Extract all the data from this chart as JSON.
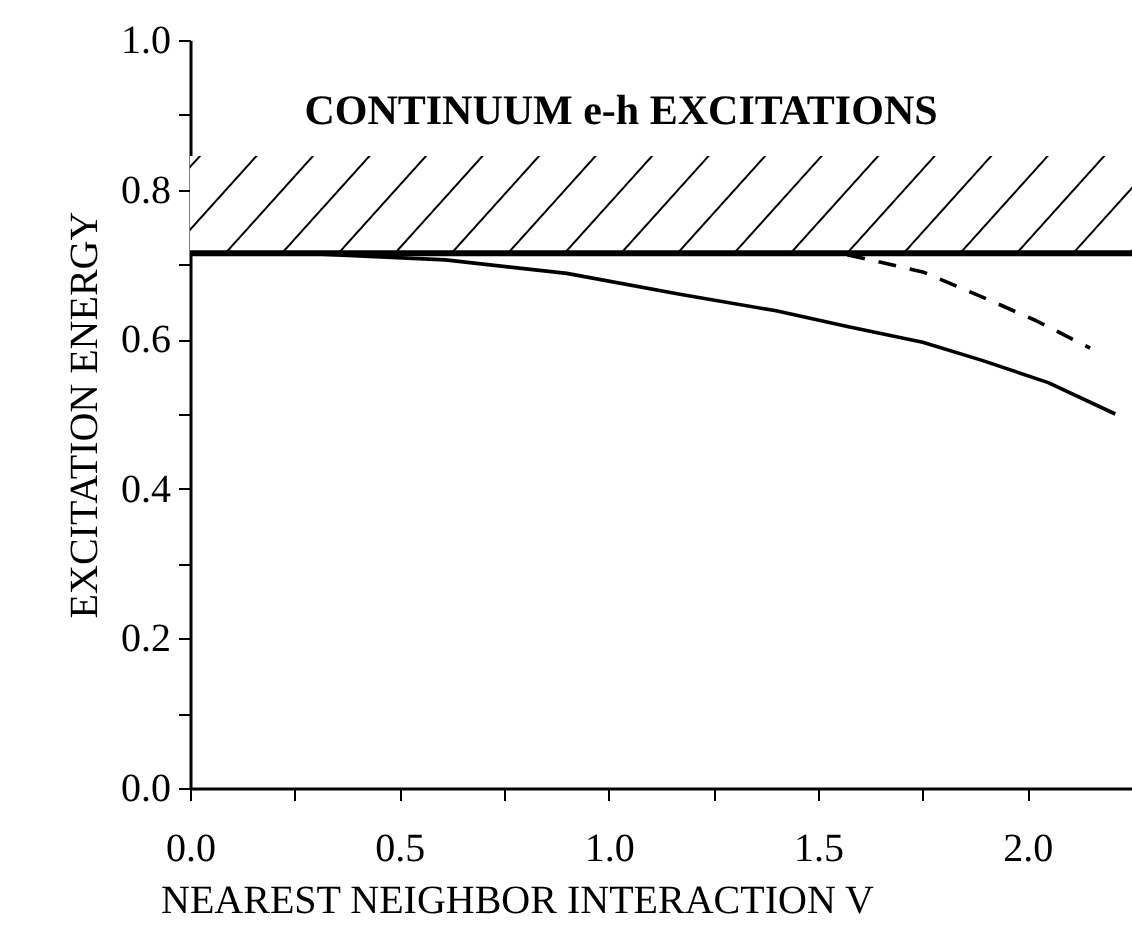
{
  "chart_data": {
    "type": "line",
    "xlabel": "NEAREST NEIGHBOR INTERACTION V",
    "ylabel": "EXCITATION ENERGY",
    "xlim": [
      0,
      2.25
    ],
    "ylim": [
      0,
      1
    ],
    "xticks": [
      "0.0",
      {
        "value": 0.25,
        "label": null
      },
      {
        "value": 0.5,
        "label": "0.5"
      },
      {
        "value": 0.75,
        "label": null
      },
      {
        "value": 1,
        "label": "1.0"
      },
      {
        "value": 1.25,
        "label": null
      },
      {
        "value": 1.5,
        "label": "1.5"
      },
      {
        "value": 1.75,
        "label": null
      },
      {
        "value": 2,
        "label": "2.0"
      }
    ],
    "yticks": [
      {
        "value": 0,
        "label": "0.0"
      },
      {
        "value": 0.1,
        "label": null
      },
      {
        "value": 0.2,
        "label": "0.2"
      },
      {
        "value": 0.3,
        "label": null
      },
      {
        "value": 0.4,
        "label": "0.4"
      },
      {
        "value": 0.5,
        "label": null
      },
      {
        "value": 0.6,
        "label": "0.6"
      },
      {
        "value": 0.7,
        "label": null
      },
      {
        "value": 0.8,
        "label": "0.8"
      },
      {
        "value": 0.9,
        "label": null
      },
      {
        "value": 1,
        "label": "1.0"
      }
    ],
    "grid": false,
    "marker": "none",
    "bands": [
      {
        "axis": "y",
        "from": 0.715,
        "to": 0.845,
        "label": "CONTINUUM e-h EXCITATIONS",
        "color": "#000000"
      }
    ],
    "ref_lines": [
      {
        "axis": "y",
        "value": 0.715,
        "color": "#000000"
      }
    ],
    "series": [
      {
        "color": "#000000",
        "line_style": "solid",
        "x": [
          0,
          0.3,
          0.61,
          0.9,
          1.17,
          1.4,
          1.57,
          1.75,
          1.89,
          2.05,
          2.21
        ],
        "values": [
          0.715,
          0.714,
          0.706,
          0.688,
          0.66,
          0.638,
          0.617,
          0.596,
          0.572,
          0.542,
          0.5
        ]
      },
      {
        "color": "#000000",
        "line_style": "dashed",
        "x": [
          1.57,
          1.75,
          1.89,
          2.02,
          2.15
        ],
        "values": [
          0.713,
          0.69,
          0.657,
          0.625,
          0.588
        ]
      }
    ]
  }
}
